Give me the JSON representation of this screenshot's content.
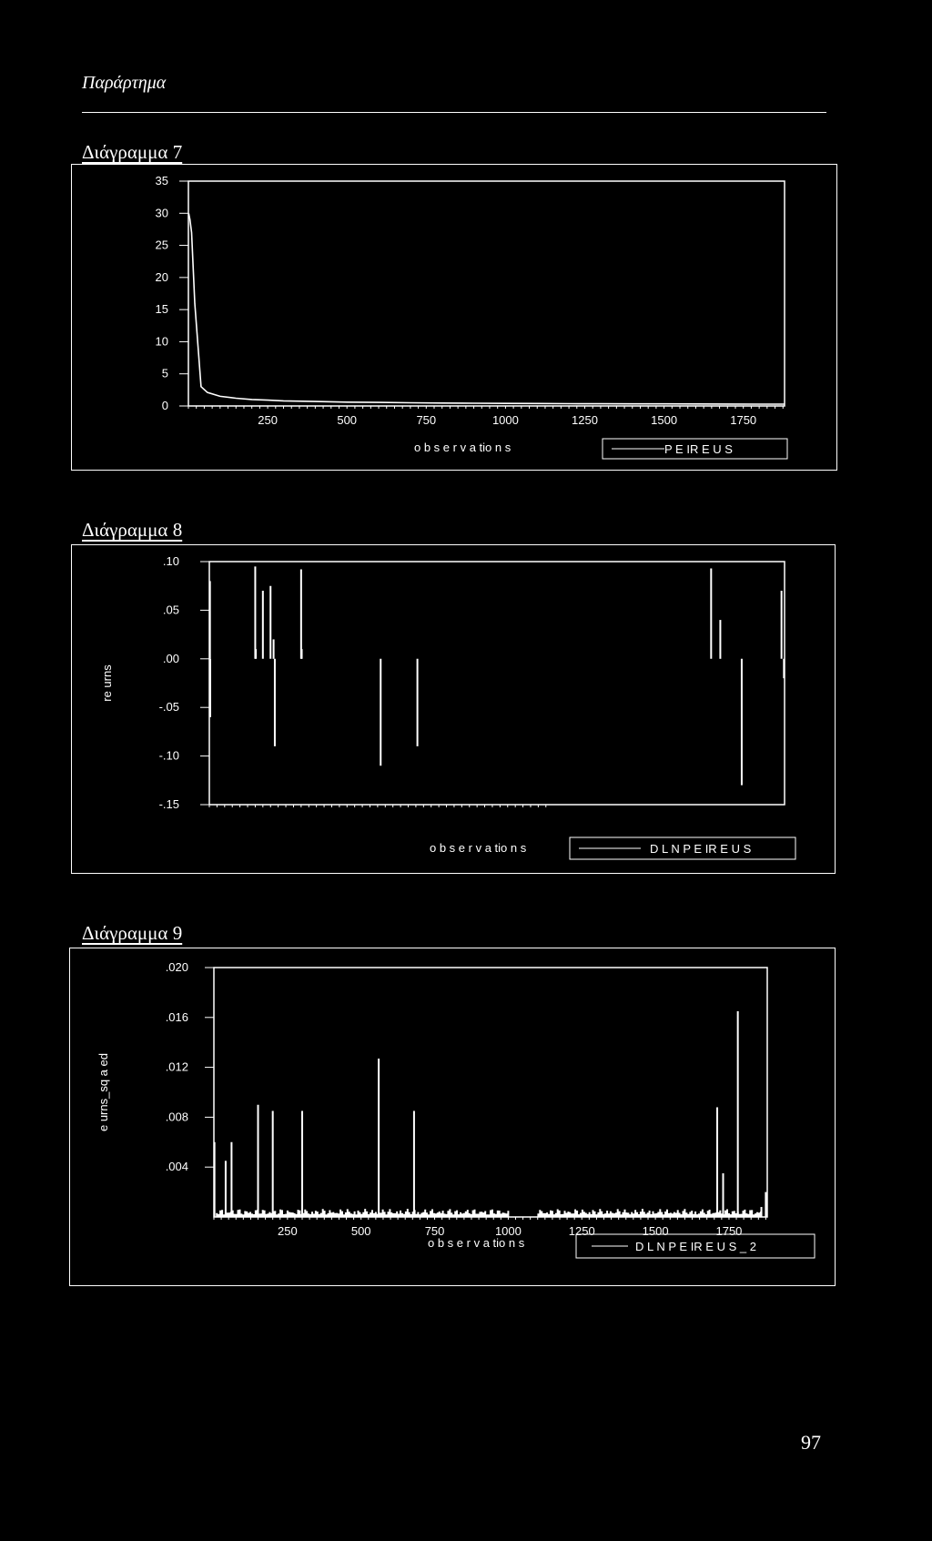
{
  "header": {
    "title": "Παράρτημα"
  },
  "page_number": "97",
  "chart_data": [
    {
      "id": "fig7",
      "title": "Διάγραμμα 7",
      "type": "line",
      "xlabel": "o b s e r v a tio n s",
      "ylabel": "",
      "legend": "P E IR E U S",
      "yticks": [
        "35",
        "30",
        "25",
        "20",
        "15",
        "10",
        "5",
        "0"
      ],
      "ytick_values": [
        35,
        30,
        25,
        20,
        15,
        10,
        5,
        0
      ],
      "xticks": [
        "250",
        "500",
        "750",
        "1000",
        "1250",
        "1500",
        "1750"
      ],
      "xtick_values": [
        250,
        500,
        750,
        1000,
        1250,
        1500,
        1750
      ],
      "xlim": [
        0,
        1880
      ],
      "ylim": [
        0,
        35
      ],
      "series": [
        {
          "values": [
            [
              1,
              30
            ],
            [
              5,
              29
            ],
            [
              10,
              27
            ],
            [
              20,
              16
            ],
            [
              40,
              3
            ],
            [
              60,
              2.1
            ],
            [
              100,
              1.5
            ],
            [
              150,
              1.2
            ],
            [
              200,
              1.0
            ],
            [
              250,
              0.9
            ],
            [
              300,
              0.8
            ],
            [
              400,
              0.7
            ],
            [
              500,
              0.6
            ],
            [
              600,
              0.55
            ],
            [
              700,
              0.5
            ],
            [
              800,
              0.45
            ],
            [
              900,
              0.42
            ],
            [
              1000,
              0.4
            ],
            [
              1100,
              0.38
            ],
            [
              1200,
              0.36
            ],
            [
              1300,
              0.34
            ],
            [
              1400,
              0.33
            ],
            [
              1500,
              0.32
            ],
            [
              1600,
              0.31
            ],
            [
              1700,
              0.3
            ],
            [
              1800,
              0.29
            ],
            [
              1880,
              0.28
            ]
          ]
        }
      ]
    },
    {
      "id": "fig8",
      "title": "Διάγραμμα 8",
      "type": "line",
      "xlabel": "o b s e r v a tio n s",
      "ylabel": "re urns",
      "legend": "D L N P E IR E U S",
      "yticks": [
        ".10",
        ".05",
        ".00",
        "-.05",
        "-.10",
        "-.15"
      ],
      "ytick_values": [
        0.1,
        0.05,
        0.0,
        -0.05,
        -0.1,
        -0.15
      ],
      "xticks": [],
      "xlim": [
        0,
        1880
      ],
      "ylim": [
        -0.15,
        0.1
      ],
      "series": [
        {
          "values": [
            [
              2,
              0.08
            ],
            [
              3,
              -0.06
            ],
            [
              150,
              0.095
            ],
            [
              152,
              0.01
            ],
            [
              175,
              0.07
            ],
            [
              200,
              0.075
            ],
            [
              210,
              0.02
            ],
            [
              214,
              -0.09
            ],
            [
              300,
              0.092
            ],
            [
              302,
              0.01
            ],
            [
              560,
              -0.11
            ],
            [
              680,
              -0.09
            ],
            [
              1640,
              0.093
            ],
            [
              1670,
              0.04
            ],
            [
              1740,
              -0.13
            ],
            [
              1870,
              0.07
            ],
            [
              1878,
              -0.02
            ]
          ]
        }
      ]
    },
    {
      "id": "fig9",
      "title": "Διάγραμμα 9",
      "type": "line",
      "xlabel": "o b s e r v a tio n s",
      "ylabel": "e urns_sq a ed",
      "legend": "D L N P E IR E U S _ 2",
      "yticks": [
        ".020",
        ".016",
        ".012",
        ".008",
        ".004"
      ],
      "ytick_values": [
        0.02,
        0.016,
        0.012,
        0.008,
        0.004
      ],
      "xticks": [
        "250",
        "500",
        "750",
        "1000",
        "1250",
        "1500",
        "1750"
      ],
      "xtick_values": [
        250,
        500,
        750,
        1000,
        1250,
        1500,
        1750
      ],
      "xlim": [
        0,
        1880
      ],
      "ylim": [
        0,
        0.02
      ],
      "series": [
        {
          "values": [
            [
              2,
              0.006
            ],
            [
              40,
              0.0045
            ],
            [
              60,
              0.006
            ],
            [
              150,
              0.009
            ],
            [
              200,
              0.0085
            ],
            [
              300,
              0.0085
            ],
            [
              560,
              0.0127
            ],
            [
              680,
              0.0085
            ],
            [
              1710,
              0.0088
            ],
            [
              1730,
              0.0035
            ],
            [
              1780,
              0.0165
            ],
            [
              1860,
              0.0008
            ],
            [
              1875,
              0.002
            ]
          ]
        }
      ]
    }
  ]
}
